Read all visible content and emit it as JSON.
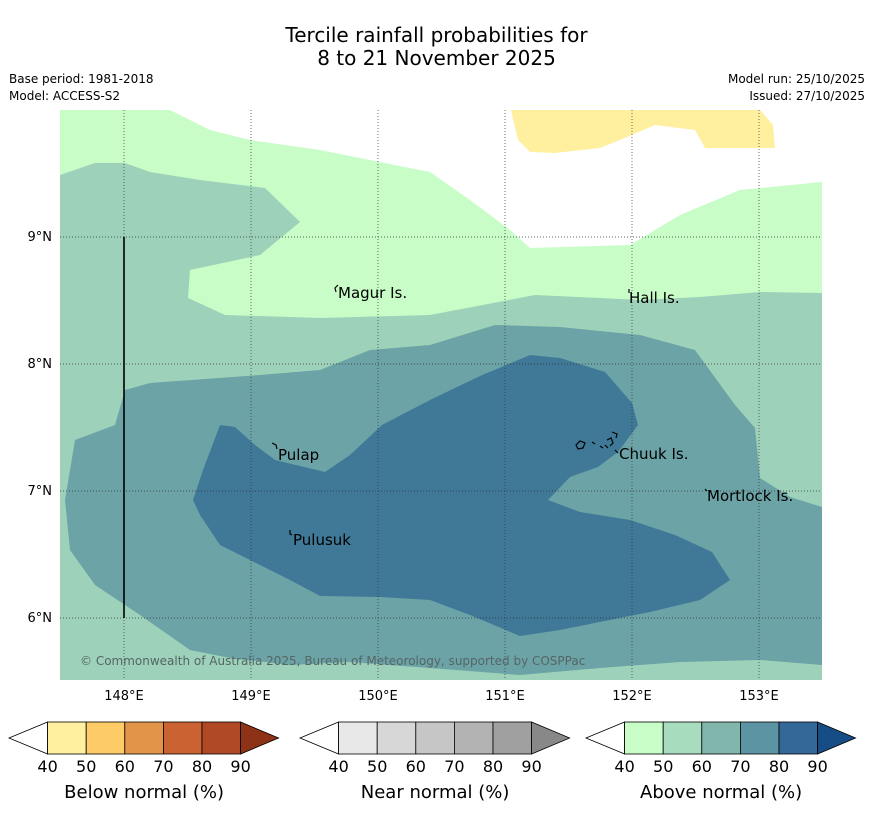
{
  "header": {
    "title_line1": "Tercile rainfall probabilities for",
    "title_line2": "8 to 21 November 2025",
    "base_period": "Base period: 1981-2018",
    "model": "Model: ACCESS-S2",
    "model_run": "Model run: 25/10/2025",
    "issued": "Issued: 27/10/2025"
  },
  "map": {
    "lon_ticks": [
      "148°E",
      "149°E",
      "150°E",
      "151°E",
      "152°E",
      "153°E"
    ],
    "lat_ticks": [
      "9°N",
      "8°N",
      "7°N",
      "6°N"
    ],
    "places": [
      {
        "name": "Magur Is."
      },
      {
        "name": "Hall Is."
      },
      {
        "name": "Pulap"
      },
      {
        "name": "Chuuk Is."
      },
      {
        "name": "Mortlock Is."
      },
      {
        "name": "Pulusuk"
      }
    ],
    "copyright": "© Commonwealth of Australia 2025, Bureau of Meteorology, supported by COSPPac",
    "colors": {
      "above_40_50": "#c8fdc8",
      "above_50_60": "#9dd1b9",
      "above_60_70": "#6ca3a6",
      "above_70_80": "#3f7997",
      "below_40_50": "#fff0a0"
    }
  },
  "legends": [
    {
      "title": "Below normal (%)",
      "ticks": [
        "40",
        "50",
        "60",
        "70",
        "80",
        "90"
      ],
      "colors": [
        "#fff0a0",
        "#fecc66",
        "#e29548",
        "#cb6232",
        "#b04a26",
        "#8e3217"
      ]
    },
    {
      "title": "Near normal (%)",
      "ticks": [
        "40",
        "50",
        "60",
        "70",
        "80",
        "90"
      ],
      "colors": [
        "#e8e8e8",
        "#d7d7d7",
        "#c6c6c6",
        "#b3b3b3",
        "#a0a0a0",
        "#888888"
      ]
    },
    {
      "title": "Above normal (%)",
      "ticks": [
        "40",
        "50",
        "60",
        "70",
        "80",
        "90"
      ],
      "colors": [
        "#c8fdc8",
        "#a8dcbe",
        "#80b6ac",
        "#5c94a3",
        "#336899",
        "#154d84"
      ]
    }
  ]
}
